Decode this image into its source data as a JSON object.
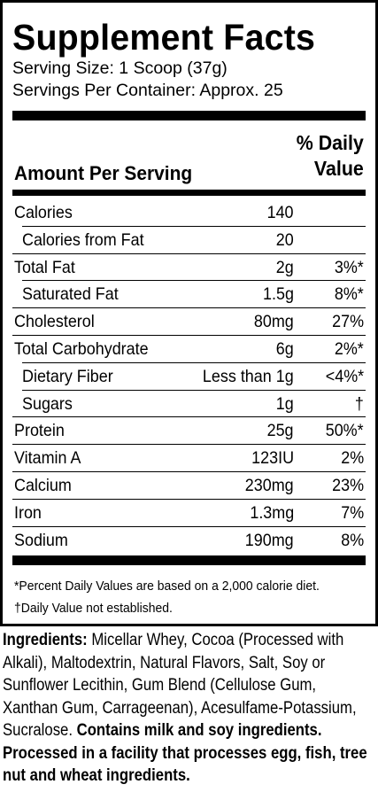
{
  "title": "Supplement Facts",
  "serving_size": "Serving Size: 1 Scoop (37g)",
  "servings_per_container": "Servings Per Container: Approx. 25",
  "header": {
    "amount_per_serving": "Amount Per Serving",
    "daily_value_line1": "% Daily",
    "daily_value_line2": "Value"
  },
  "rows": [
    {
      "name": "Calories",
      "amount": "140",
      "dv": "",
      "indent": false
    },
    {
      "name": "Calories from Fat",
      "amount": "20",
      "dv": "",
      "indent": true
    },
    {
      "name": "Total Fat",
      "amount": "2g",
      "dv": "3%*",
      "indent": false
    },
    {
      "name": "Saturated Fat",
      "amount": "1.5g",
      "dv": "8%*",
      "indent": true
    },
    {
      "name": "Cholesterol",
      "amount": "80mg",
      "dv": "27%",
      "indent": false
    },
    {
      "name": "Total Carbohydrate",
      "amount": "6g",
      "dv": "2%*",
      "indent": false
    },
    {
      "name": "Dietary Fiber",
      "amount": "Less than 1g",
      "dv": "<4%*",
      "indent": true
    },
    {
      "name": "Sugars",
      "amount": "1g",
      "dv": "†",
      "indent": true
    },
    {
      "name": "Protein",
      "amount": "25g",
      "dv": "50%*",
      "indent": false
    },
    {
      "name": "Vitamin A",
      "amount": "123IU",
      "dv": "2%",
      "indent": false
    },
    {
      "name": "Calcium",
      "amount": "230mg",
      "dv": "23%",
      "indent": false
    },
    {
      "name": "Iron",
      "amount": "1.3mg",
      "dv": "7%",
      "indent": false
    },
    {
      "name": "Sodium",
      "amount": "190mg",
      "dv": "8%",
      "indent": false
    }
  ],
  "footnotes": {
    "percent_dv": "*Percent Daily Values are based on a 2,000 calorie diet.",
    "not_established": "†Daily Value not established."
  },
  "ingredients": {
    "label": "Ingredients:",
    "text": " Micellar Whey, Cocoa (Processed with Alkali), Maltodextrin, Natural Flavors, Salt, Soy or Sunflower Lecithin, Gum Blend (Cellulose Gum, Xanthan Gum, Carrageenan), Acesulfame-Potassium, Sucralose. ",
    "allergen": "Contains milk and soy ingredients. Processed in a facility that processes egg, fish, tree nut and wheat ingredients."
  }
}
